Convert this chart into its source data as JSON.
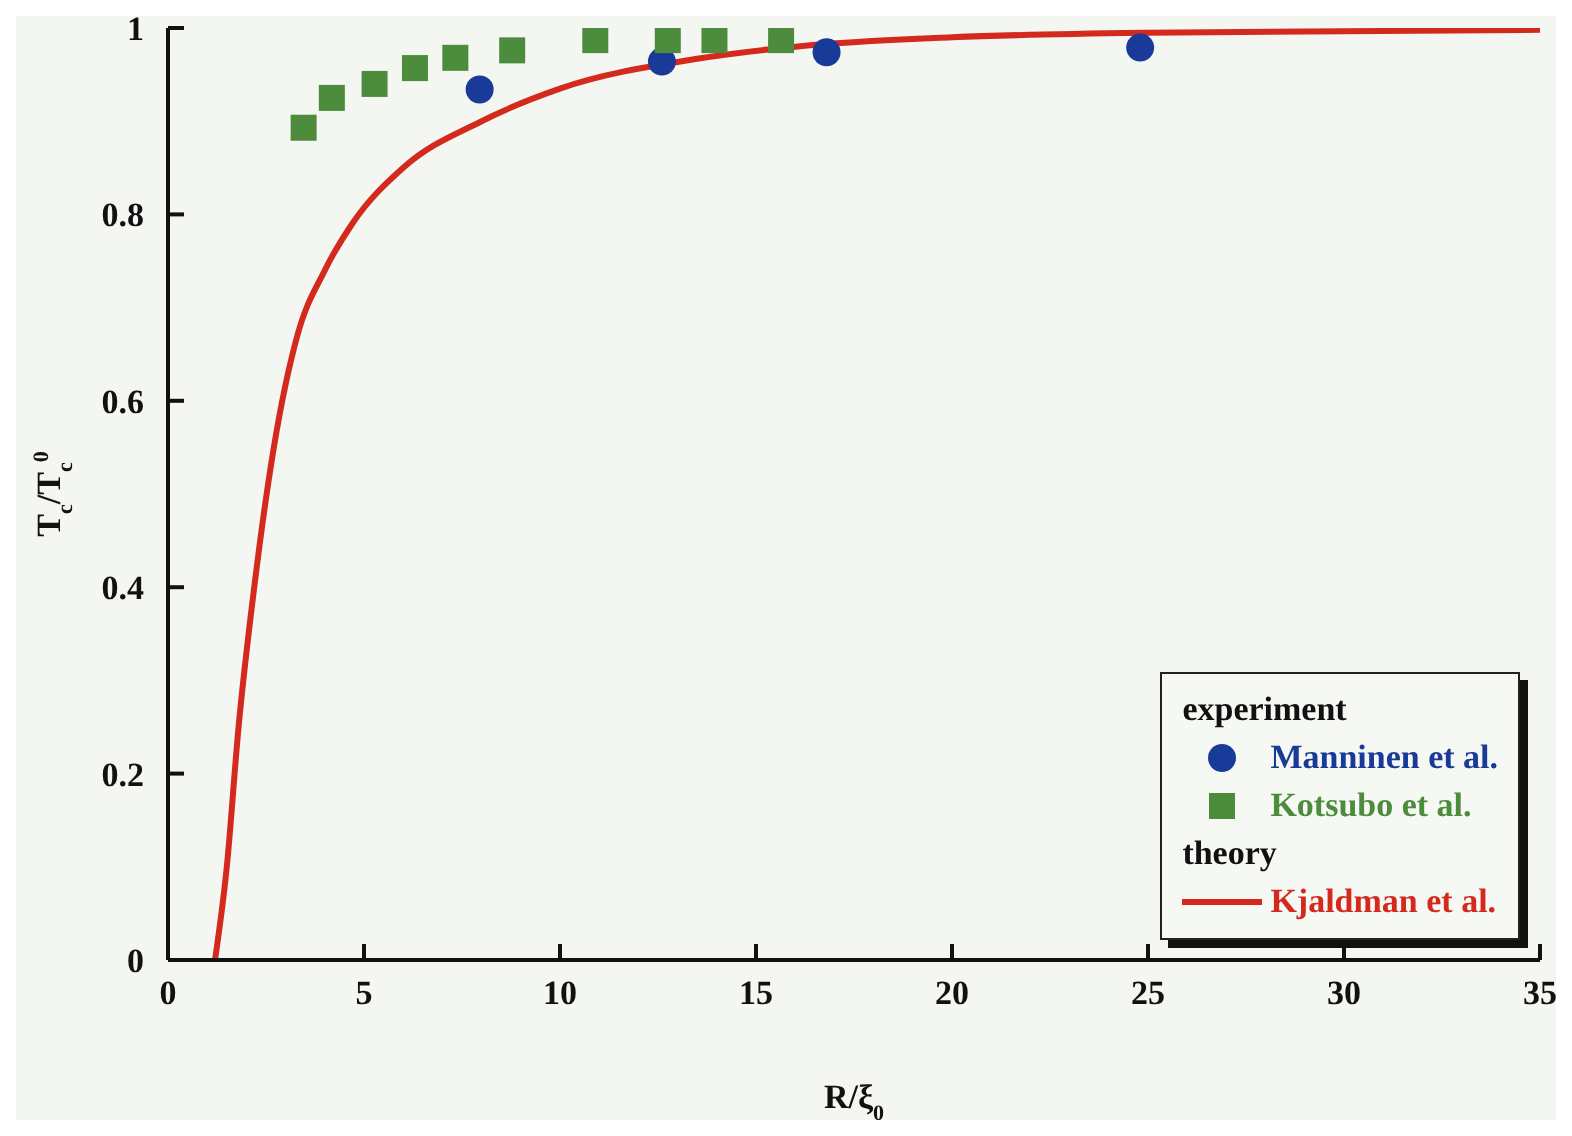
{
  "chart_data": {
    "type": "scatter",
    "xlabel": "R/ξ$_{0}$",
    "ylabel": "T$_{c}$/T$_{c}$$^{0}$",
    "xlim": [
      0,
      35
    ],
    "xticks": [
      0,
      5,
      10,
      15,
      20,
      25,
      30,
      35
    ],
    "ylim": [
      0,
      1
    ],
    "yticks": [
      0,
      0.2,
      0.4,
      0.6,
      0.8,
      1
    ],
    "grid": false,
    "legend": "bottom right",
    "annotations": [
      "experiment",
      "theory"
    ],
    "series": [
      {
        "name": "Manninen et al.",
        "marker": "circle",
        "color": "#1a3a9a",
        "x": [
          7.95,
          12.6,
          16.8,
          24.8
        ],
        "values": [
          0.934,
          0.964,
          0.974,
          0.979
        ]
      },
      {
        "name": "Kotsubo et al.",
        "marker": "square",
        "color": "#4c8c3c",
        "x": [
          3.46,
          4.18,
          5.27,
          6.3,
          7.33,
          8.78,
          10.9,
          12.75,
          13.94,
          15.64
        ],
        "values": [
          0.893,
          0.925,
          0.94,
          0.957,
          0.968,
          0.976,
          0.987,
          0.987,
          0.987,
          0.987
        ]
      },
      {
        "name": "Kjaldman et al.",
        "type": "line",
        "marker": "none",
        "color": "#d42a1e",
        "x": [
          1.2,
          1.5,
          1.8,
          2.2,
          2.7,
          3.3,
          4,
          4.7,
          6,
          8,
          10,
          13.5,
          16,
          20,
          25,
          35
        ],
        "values": [
          0,
          0.1,
          0.25,
          0.4,
          0.55,
          0.67,
          0.74,
          0.79,
          0.85,
          0.9,
          0.935,
          0.967,
          0.98,
          0.99,
          0.995,
          0.998
        ]
      }
    ]
  }
}
